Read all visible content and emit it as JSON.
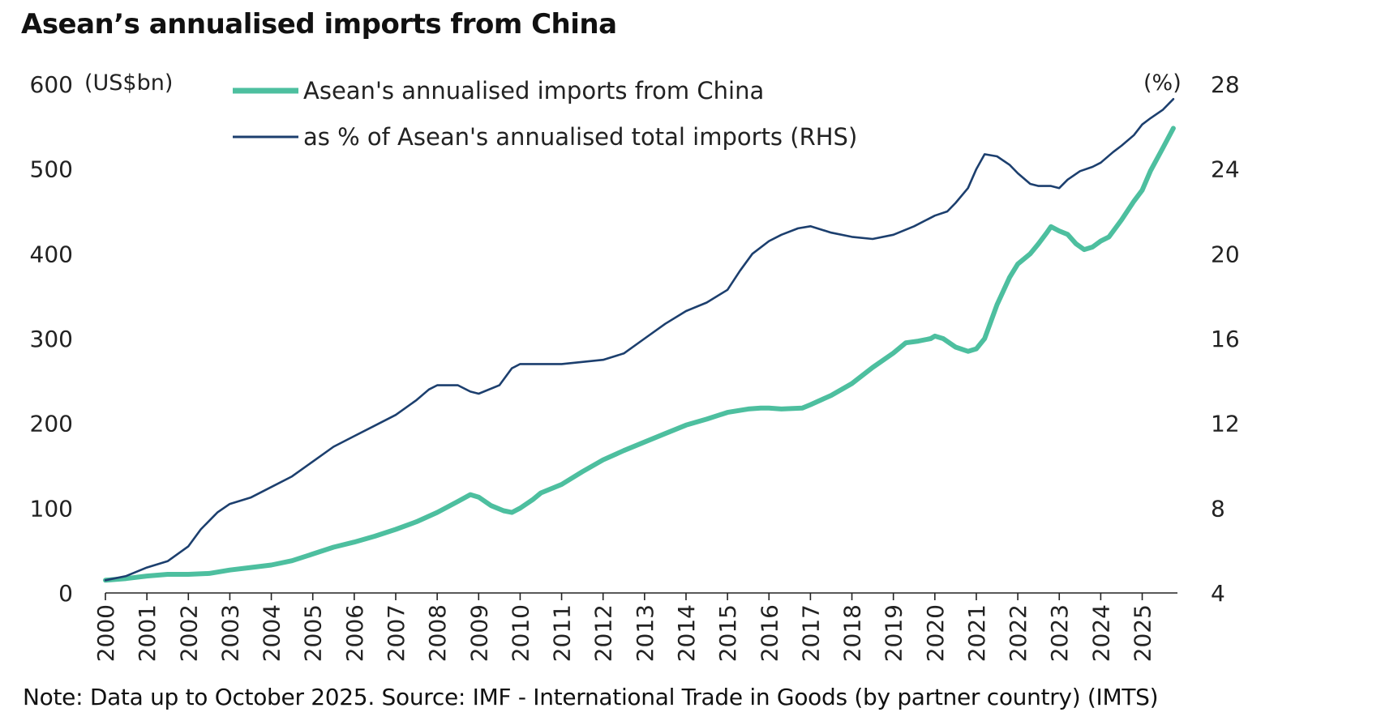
{
  "chart_data": {
    "type": "line",
    "title": "Asean’s annualised imports from China",
    "note": "Note: Data up to October 2025. Source: IMF - International Trade in Goods (by partner country) (IMTS)",
    "left_unit": "(US$bn)",
    "right_unit": "(%)",
    "x_ticks": [
      "2000",
      "2001",
      "2002",
      "2003",
      "2004",
      "2005",
      "2006",
      "2007",
      "2008",
      "2009",
      "2010",
      "2011",
      "2012",
      "2013",
      "2014",
      "2015",
      "2016",
      "2017",
      "2018",
      "2019",
      "2020",
      "2021",
      "2022",
      "2023",
      "2024",
      "2025"
    ],
    "y_left": {
      "ticks": [
        "0",
        "100",
        "200",
        "300",
        "400",
        "500",
        "600"
      ],
      "ylim": [
        0,
        600
      ]
    },
    "y_right": {
      "ticks": [
        "4",
        "8",
        "12",
        "16",
        "20",
        "24",
        "28"
      ],
      "ylim": [
        4,
        28
      ]
    },
    "xlim": [
      2000,
      2025.85
    ],
    "colors": {
      "imports": "#4dbf9f",
      "share": "#1c3f6e"
    },
    "series": [
      {
        "name": "Asean's annualised imports from China",
        "axis": "left",
        "x": [
          2000,
          2000.5,
          2001,
          2001.5,
          2002,
          2002.5,
          2003,
          2003.5,
          2004,
          2004.5,
          2005,
          2005.5,
          2006,
          2006.5,
          2007,
          2007.5,
          2008,
          2008.5,
          2008.8,
          2009,
          2009.3,
          2009.6,
          2009.8,
          2010,
          2010.3,
          2010.5,
          2011,
          2011.5,
          2012,
          2012.5,
          2013,
          2013.5,
          2014,
          2014.5,
          2015,
          2015.5,
          2015.8,
          2016,
          2016.3,
          2016.8,
          2017,
          2017.5,
          2018,
          2018.5,
          2019,
          2019.3,
          2019.6,
          2019.9,
          2020,
          2020.2,
          2020.5,
          2020.8,
          2021,
          2021.2,
          2021.5,
          2021.8,
          2022,
          2022.3,
          2022.5,
          2022.7,
          2022.8,
          2023,
          2023.2,
          2023.4,
          2023.6,
          2023.8,
          2024,
          2024.2,
          2024.5,
          2024.8,
          2025,
          2025.2,
          2025.5,
          2025.75
        ],
        "values": [
          15,
          17,
          20,
          22,
          22,
          23,
          27,
          30,
          33,
          38,
          46,
          54,
          60,
          67,
          75,
          84,
          95,
          108,
          116,
          113,
          103,
          97,
          95,
          100,
          110,
          118,
          128,
          143,
          157,
          168,
          178,
          188,
          198,
          205,
          213,
          217,
          218,
          218,
          217,
          218,
          222,
          233,
          247,
          266,
          283,
          295,
          297,
          300,
          303,
          300,
          290,
          285,
          288,
          300,
          340,
          372,
          388,
          400,
          412,
          425,
          432,
          427,
          423,
          412,
          405,
          408,
          415,
          420,
          440,
          462,
          475,
          498,
          525,
          548
        ]
      },
      {
        "name": "as % of Asean's annualised total imports (RHS)",
        "axis": "right",
        "x": [
          2000,
          2000.5,
          2001,
          2001.5,
          2002,
          2002.3,
          2002.7,
          2003,
          2003.5,
          2004,
          2004.5,
          2005,
          2005.5,
          2006,
          2006.5,
          2007,
          2007.5,
          2007.8,
          2008,
          2008.5,
          2008.8,
          2009,
          2009.5,
          2009.8,
          2010,
          2010.3,
          2010.5,
          2011,
          2011.5,
          2012,
          2012.5,
          2013,
          2013.5,
          2014,
          2014.5,
          2015,
          2015.3,
          2015.6,
          2016,
          2016.3,
          2016.7,
          2017,
          2017.5,
          2018,
          2018.5,
          2019,
          2019.5,
          2020,
          2020.3,
          2020.5,
          2020.8,
          2021,
          2021.2,
          2021.5,
          2021.8,
          2022,
          2022.3,
          2022.5,
          2022.8,
          2023,
          2023.2,
          2023.5,
          2023.8,
          2024,
          2024.3,
          2024.5,
          2024.8,
          2025,
          2025.2,
          2025.5,
          2025.75
        ],
        "values": [
          4.6,
          4.8,
          5.2,
          5.5,
          6.2,
          7.0,
          7.8,
          8.2,
          8.5,
          9.0,
          9.5,
          10.2,
          10.9,
          11.4,
          11.9,
          12.4,
          13.1,
          13.6,
          13.8,
          13.8,
          13.5,
          13.4,
          13.8,
          14.6,
          14.8,
          14.8,
          14.8,
          14.8,
          14.9,
          15.0,
          15.3,
          16.0,
          16.7,
          17.3,
          17.7,
          18.3,
          19.2,
          20.0,
          20.6,
          20.9,
          21.2,
          21.3,
          21.0,
          20.8,
          20.7,
          20.9,
          21.3,
          21.8,
          22.0,
          22.4,
          23.1,
          24.0,
          24.7,
          24.6,
          24.2,
          23.8,
          23.3,
          23.2,
          23.2,
          23.1,
          23.5,
          23.9,
          24.1,
          24.3,
          24.8,
          25.1,
          25.6,
          26.1,
          26.4,
          26.8,
          27.3
        ]
      }
    ]
  }
}
